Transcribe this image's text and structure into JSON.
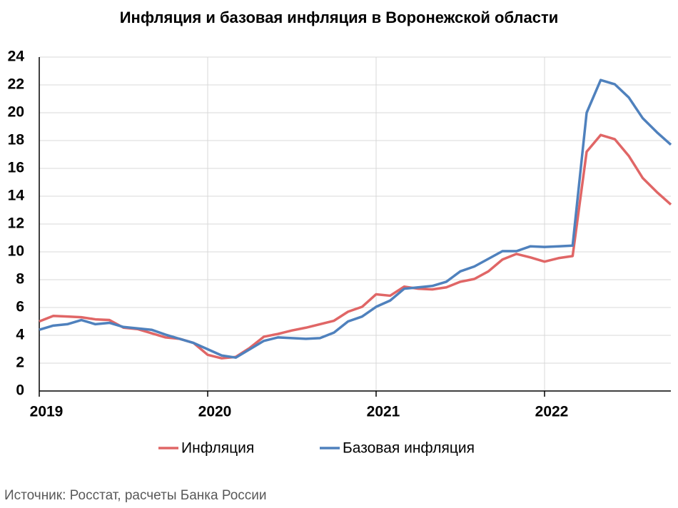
{
  "chart_data": {
    "type": "line",
    "title": "Инфляция и базовая инфляция в Воронежской области",
    "source": "Источник: Росстат, расчеты Банка России",
    "x": [
      2019,
      2019.0833,
      2019.1667,
      2019.25,
      2019.3333,
      2019.4167,
      2019.5,
      2019.5833,
      2019.6667,
      2019.75,
      2019.8333,
      2019.9167,
      2020,
      2020.0833,
      2020.1667,
      2020.25,
      2020.3333,
      2020.4167,
      2020.5,
      2020.5833,
      2020.6667,
      2020.75,
      2020.8333,
      2020.9167,
      2021,
      2021.0833,
      2021.1667,
      2021.25,
      2021.3333,
      2021.4167,
      2021.5,
      2021.5833,
      2021.6667,
      2021.75,
      2021.8333,
      2021.9167,
      2022,
      2022.0833,
      2022.1667,
      2022.25,
      2022.3333,
      2022.4167,
      2022.5,
      2022.5833,
      2022.6667,
      2022.75
    ],
    "series": [
      {
        "name": "Инфляция",
        "color": "#e06666",
        "values": [
          5.0,
          5.4,
          5.35,
          5.3,
          5.15,
          5.1,
          4.55,
          4.45,
          4.15,
          3.85,
          3.75,
          3.45,
          2.6,
          2.35,
          2.45,
          3.1,
          3.9,
          4.1,
          4.35,
          4.55,
          4.8,
          5.05,
          5.7,
          6.05,
          6.95,
          6.85,
          7.5,
          7.35,
          7.3,
          7.45,
          7.85,
          8.05,
          8.6,
          9.45,
          9.85,
          9.6,
          9.3,
          9.55,
          9.7,
          17.2,
          18.4,
          18.1,
          16.9,
          15.3,
          14.3,
          13.4
        ]
      },
      {
        "name": "Базовая инфляция",
        "color": "#4f81bd",
        "values": [
          4.4,
          4.7,
          4.8,
          5.1,
          4.8,
          4.9,
          4.6,
          4.5,
          4.4,
          4.05,
          3.75,
          3.45,
          3.0,
          2.55,
          2.4,
          3.0,
          3.6,
          3.85,
          3.8,
          3.75,
          3.8,
          4.2,
          5.0,
          5.35,
          6.05,
          6.5,
          7.35,
          7.45,
          7.55,
          7.85,
          8.6,
          8.95,
          9.5,
          10.05,
          10.05,
          10.4,
          10.35,
          10.4,
          10.45,
          20.0,
          22.35,
          22.05,
          21.1,
          19.6,
          18.6,
          17.7
        ]
      }
    ],
    "xlim": [
      2019,
      2022.75
    ],
    "xticks": [
      2019,
      2020,
      2021,
      2022
    ],
    "ylim": [
      0,
      24
    ],
    "yticks": [
      0,
      2,
      4,
      6,
      8,
      10,
      12,
      14,
      16,
      18,
      20,
      22,
      24
    ],
    "grid": true,
    "legend": "bottom"
  }
}
